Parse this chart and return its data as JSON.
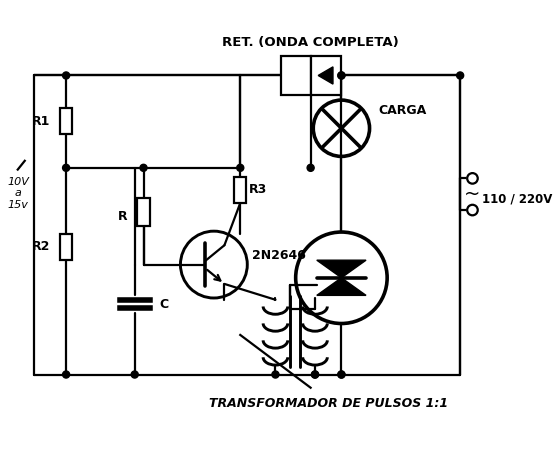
{
  "background_color": "#ffffff",
  "line_color": "#000000",
  "line_width": 1.6,
  "fig_width": 5.55,
  "fig_height": 4.5,
  "dpi": 100,
  "labels": {
    "top_label": "RET. (ONDA COMPLETA)",
    "r1_label": "R1",
    "r2_label": "R2",
    "r_label": "R",
    "r3_label": "R3",
    "c_label": "C",
    "ujt_label": "2N2646",
    "ac_label": "110 / 220V",
    "carga_label": "CARGA",
    "voltage_label": "10V\na\n15v",
    "transformer_label": "TRANSFORMADOR DE PULSOS 1:1"
  }
}
